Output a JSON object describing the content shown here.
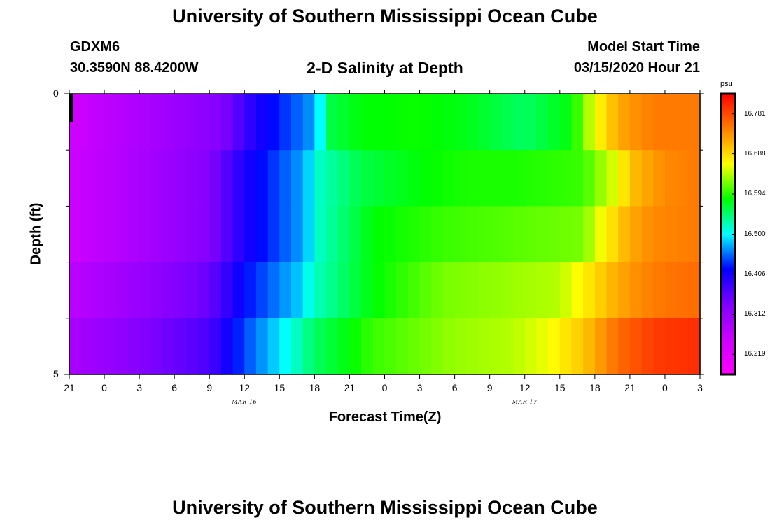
{
  "page": {
    "title_top": "University of Southern Mississippi Ocean Cube",
    "title_bottom": "University of Southern Mississippi Ocean Cube",
    "station": "GDXM6",
    "coordinates": "30.3590N 88.4200W",
    "plot_title": "2-D Salinity at Depth",
    "start_label": "Model Start Time",
    "start_value": "03/15/2020 Hour 21"
  },
  "chart_data": {
    "type": "heatmap",
    "title": "2-D Salinity at Depth",
    "xlabel": "Forecast Time(Z)",
    "ylabel": "Depth (ft)",
    "x_unit": "hours since model start (03/15/2020 21Z)",
    "x_range": [
      0,
      54
    ],
    "x_tick_labels": [
      "21",
      "0",
      "3",
      "6",
      "9",
      "12",
      "15",
      "18",
      "21",
      "0",
      "3",
      "6",
      "9",
      "12",
      "15",
      "18",
      "21",
      "0",
      "3"
    ],
    "x_tick_hours": [
      0,
      3,
      6,
      9,
      12,
      15,
      18,
      21,
      24,
      27,
      30,
      33,
      36,
      39,
      42,
      45,
      48,
      51,
      54
    ],
    "x_month_labels": [
      {
        "text": "MAR 16",
        "hour": 15
      },
      {
        "text": "MAR 17",
        "hour": 39
      }
    ],
    "y_range": [
      0,
      5
    ],
    "y_reversed": true,
    "y_tick_labels": [
      "0",
      "5"
    ],
    "y_minor_ticks": [
      1,
      2,
      3,
      4
    ],
    "depth_layers": [
      0.5,
      1.5,
      2.5,
      3.5,
      4.5
    ],
    "colorbar": {
      "unit": "psu",
      "min": 16.172,
      "max": 16.828,
      "ticks": [
        16.219,
        16.312,
        16.406,
        16.5,
        16.594,
        16.688,
        16.781
      ],
      "tick_labels": [
        "16.219",
        "16.312",
        "16.406",
        "16.500",
        "16.594",
        "16.688",
        "16.781"
      ],
      "colors": [
        "#ff00ff",
        "#cc00ff",
        "#8000ff",
        "#0000ff",
        "#00ffff",
        "#00ff00",
        "#ffff00",
        "#ff8000",
        "#ff0000"
      ]
    },
    "salinity_profiles": [
      {
        "depth": 0.5,
        "hours": [
          0,
          13,
          16,
          21,
          22.5,
          25,
          30,
          34,
          39,
          43,
          45,
          47,
          50,
          54
        ],
        "values": [
          16.25,
          16.33,
          16.4,
          16.47,
          16.56,
          16.58,
          16.585,
          16.575,
          16.55,
          16.58,
          16.66,
          16.72,
          16.75,
          16.75
        ]
      },
      {
        "depth": 1.5,
        "hours": [
          0,
          12,
          15,
          20,
          21.5,
          25,
          30,
          34,
          38,
          44,
          46.5,
          48.5,
          51,
          54
        ],
        "values": [
          16.25,
          16.33,
          16.4,
          16.47,
          16.52,
          16.56,
          16.58,
          16.59,
          16.59,
          16.6,
          16.65,
          16.71,
          16.74,
          16.75
        ]
      },
      {
        "depth": 2.5,
        "hours": [
          0,
          12,
          15,
          20,
          21.5,
          26,
          32,
          38,
          44,
          45.5,
          48,
          50,
          54
        ],
        "values": [
          16.25,
          16.33,
          16.4,
          16.47,
          16.52,
          16.58,
          16.6,
          16.61,
          16.62,
          16.66,
          16.72,
          16.74,
          16.75
        ]
      },
      {
        "depth": 3.5,
        "hours": [
          0,
          12,
          15,
          19.5,
          21,
          26,
          32,
          37,
          42,
          44.5,
          47,
          50,
          54
        ],
        "values": [
          16.27,
          16.35,
          16.42,
          16.48,
          16.52,
          16.58,
          16.62,
          16.63,
          16.64,
          16.68,
          16.72,
          16.75,
          16.76
        ]
      },
      {
        "depth": 4.5,
        "hours": [
          0,
          12,
          15,
          18.5,
          21,
          26,
          33,
          38,
          41,
          44,
          47,
          50,
          54
        ],
        "values": [
          16.29,
          16.37,
          16.44,
          16.5,
          16.55,
          16.6,
          16.63,
          16.64,
          16.66,
          16.7,
          16.76,
          16.79,
          16.8
        ]
      }
    ]
  }
}
